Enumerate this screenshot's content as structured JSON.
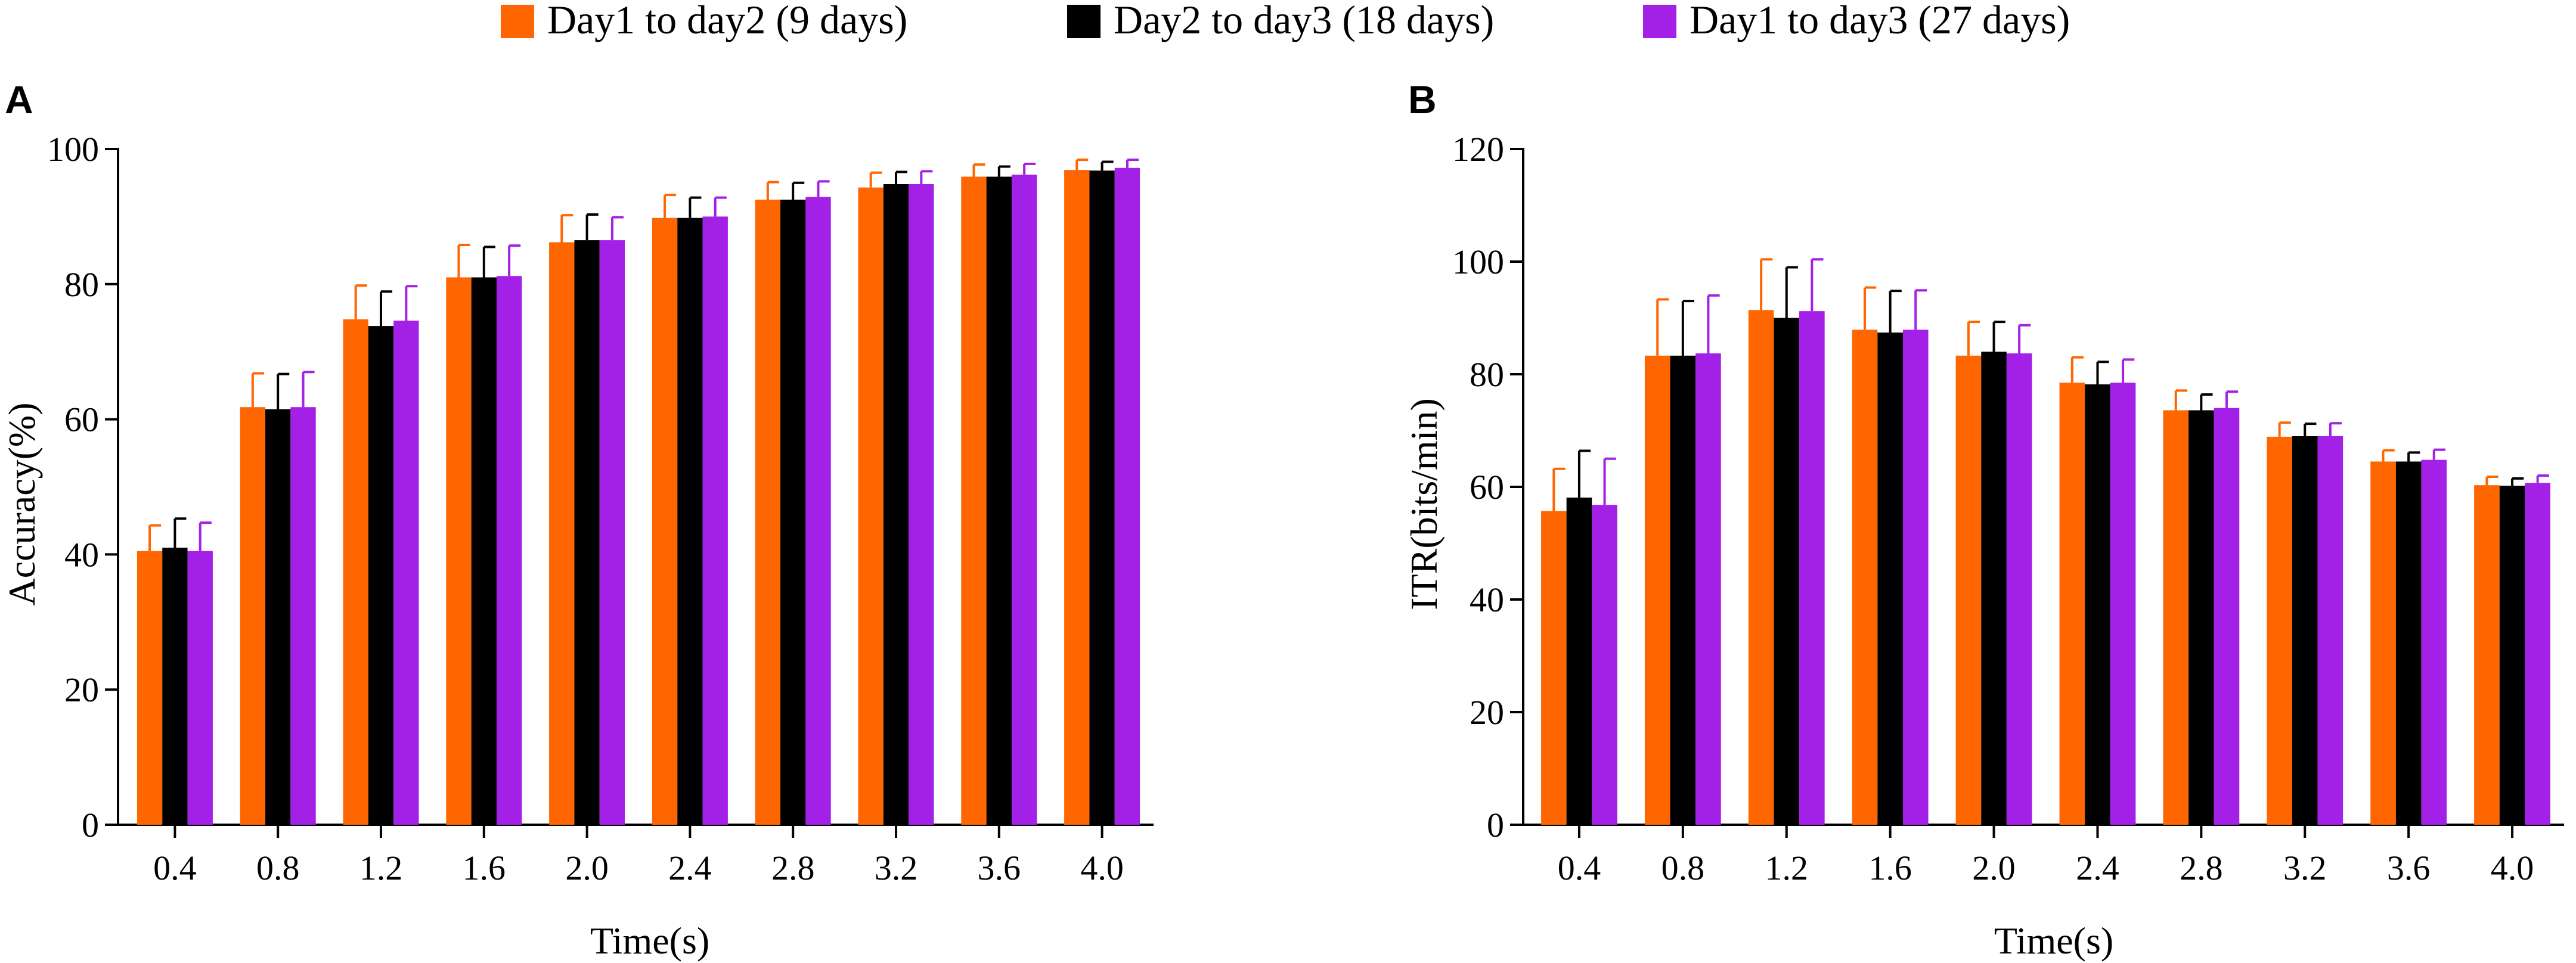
{
  "legend": [
    {
      "label": "Day1 to day2 (9 days)",
      "color": "#FF6600"
    },
    {
      "label": "Day2 to day3 (18 days)",
      "color": "#000000"
    },
    {
      "label": "Day1 to day3 (27 days)",
      "color": "#A320E6"
    }
  ],
  "chart_data": [
    {
      "type": "bar",
      "panel": "A",
      "title": "",
      "xlabel": "Time(s)",
      "ylabel": "Accuracy(%)",
      "ylim": [
        0,
        100
      ],
      "yticks": [
        "0",
        "20",
        "40",
        "60",
        "80",
        "100"
      ],
      "categories": [
        "0.4",
        "0.8",
        "1.2",
        "1.6",
        "2.0",
        "2.4",
        "2.8",
        "3.2",
        "3.6",
        "4.0"
      ],
      "series": [
        {
          "name": "Day1 to day2 (9 days)",
          "color": "#FF6600",
          "values": [
            40.5,
            61.8,
            74.8,
            81.0,
            86.2,
            89.8,
            92.5,
            94.3,
            95.9,
            96.9
          ],
          "errors": [
            3.8,
            5.0,
            5.0,
            4.8,
            4.0,
            3.4,
            2.6,
            2.2,
            1.8,
            1.5
          ]
        },
        {
          "name": "Day2 to day3 (18 days)",
          "color": "#000000",
          "values": [
            41.0,
            61.5,
            73.8,
            81.0,
            86.5,
            89.8,
            92.5,
            94.8,
            95.9,
            96.8
          ],
          "errors": [
            4.3,
            5.2,
            5.1,
            4.5,
            3.8,
            3.0,
            2.5,
            1.8,
            1.5,
            1.3
          ]
        },
        {
          "name": "Day1 to day3 (27 days)",
          "color": "#A320E6",
          "values": [
            40.5,
            61.8,
            74.6,
            81.2,
            86.5,
            90.0,
            92.9,
            94.8,
            96.2,
            97.2
          ],
          "errors": [
            4.2,
            5.2,
            5.1,
            4.5,
            3.4,
            2.8,
            2.3,
            1.9,
            1.6,
            1.2
          ]
        }
      ]
    },
    {
      "type": "bar",
      "panel": "B",
      "title": "",
      "xlabel": "Time(s)",
      "ylabel": "ITR(bits/min)",
      "ylim": [
        0,
        120
      ],
      "yticks": [
        "0",
        "20",
        "40",
        "60",
        "80",
        "100",
        "120"
      ],
      "categories": [
        "0.4",
        "0.8",
        "1.2",
        "1.6",
        "2.0",
        "2.4",
        "2.8",
        "3.2",
        "3.6",
        "4.0"
      ],
      "series": [
        {
          "name": "Day1 to day2 (9 days)",
          "color": "#FF6600",
          "values": [
            55.7,
            83.3,
            91.4,
            87.9,
            83.3,
            78.5,
            73.6,
            68.9,
            64.5,
            60.3
          ],
          "errors": [
            7.5,
            10.0,
            9.0,
            7.5,
            6.0,
            4.5,
            3.5,
            2.5,
            2.0,
            1.5
          ]
        },
        {
          "name": "Day2 to day3 (18 days)",
          "color": "#000000",
          "values": [
            58.1,
            83.3,
            90.0,
            87.4,
            84.0,
            78.2,
            73.6,
            69.0,
            64.5,
            60.2
          ],
          "errors": [
            8.3,
            9.7,
            9.0,
            7.4,
            5.3,
            4.0,
            2.8,
            2.2,
            1.6,
            1.3
          ]
        },
        {
          "name": "Day1 to day3 (27 days)",
          "color": "#A320E6",
          "values": [
            56.8,
            83.7,
            91.2,
            87.9,
            83.7,
            78.5,
            74.0,
            69.0,
            64.8,
            60.7
          ],
          "errors": [
            8.2,
            10.3,
            9.2,
            7.0,
            5.0,
            4.1,
            2.9,
            2.3,
            1.8,
            1.3
          ]
        }
      ]
    }
  ]
}
